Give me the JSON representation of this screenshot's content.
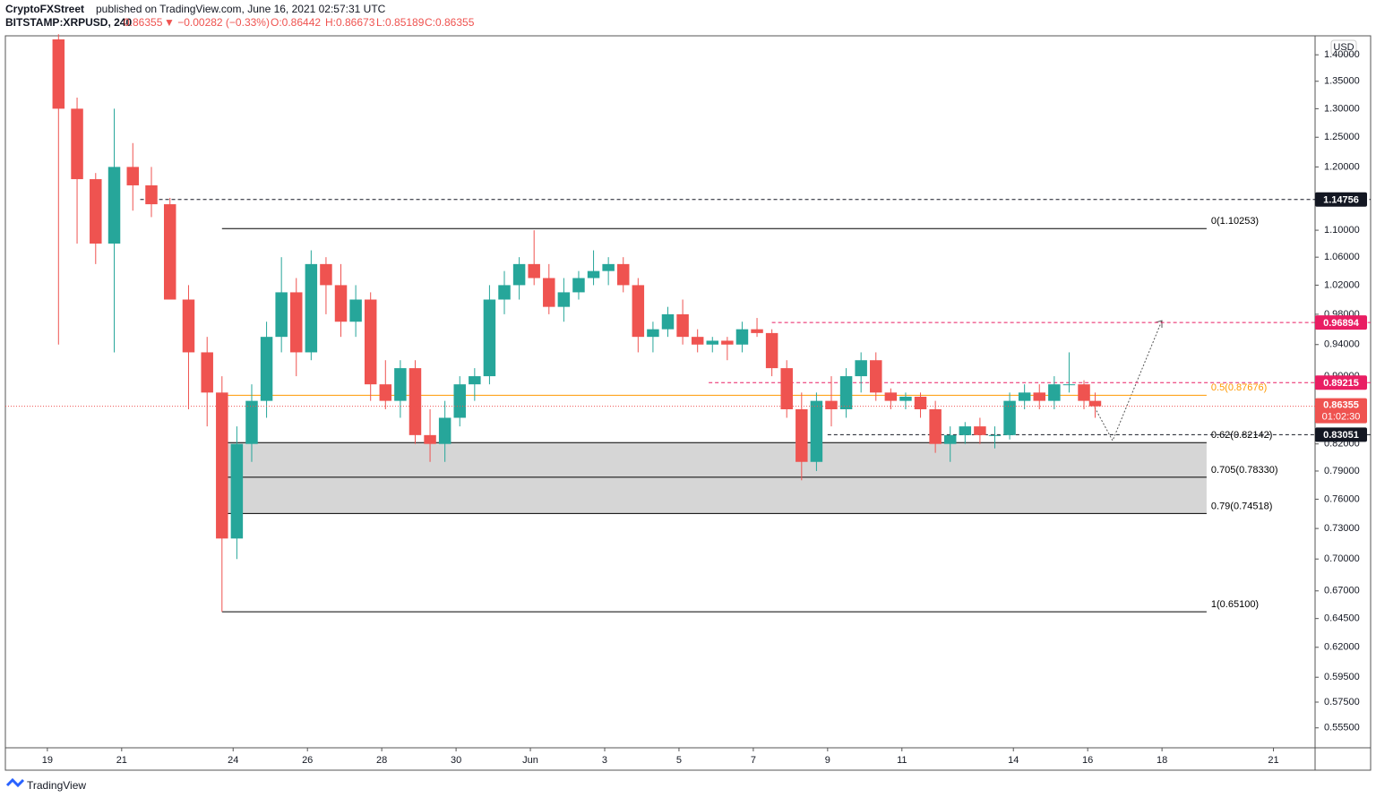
{
  "header": {
    "author": "CryptoFXStreet",
    "published": "published on TradingView.com, June 16, 2021 02:57:31 UTC",
    "symbol": "BITSTAMP:XRPUSD, 240",
    "last": "0.86355",
    "change": "▼ −0.00282 (−0.33%)",
    "open": "O:0.86442",
    "high": "H:0.86673",
    "low": "L:0.85189",
    "close": "C:0.86355"
  },
  "footer": {
    "brand": "TradingView"
  },
  "chart_data": {
    "type": "candlestick",
    "currency": "USD",
    "log": true,
    "up_color": "#26a69a",
    "down_color": "#ef5350",
    "xlim": [
      -1.13,
      34.12
    ],
    "ylim": [
      0.54,
      1.437
    ],
    "xticks": [
      {
        "value": 0,
        "label": "19"
      },
      {
        "value": 2,
        "label": "21"
      },
      {
        "value": 5,
        "label": "24"
      },
      {
        "value": 7,
        "label": "26"
      },
      {
        "value": 9,
        "label": "28"
      },
      {
        "value": 11,
        "label": "30"
      },
      {
        "value": 13,
        "label": "Jun"
      },
      {
        "value": 15,
        "label": "3"
      },
      {
        "value": 17,
        "label": "5"
      },
      {
        "value": 19,
        "label": "7"
      },
      {
        "value": 21,
        "label": "9"
      },
      {
        "value": 23,
        "label": "11"
      },
      {
        "value": 26,
        "label": "14"
      },
      {
        "value": 28,
        "label": "16"
      },
      {
        "value": 30,
        "label": "18"
      },
      {
        "value": 33,
        "label": "21"
      }
    ],
    "yticks": [
      {
        "value": 1.4,
        "label": "1.40000"
      },
      {
        "value": 1.35,
        "label": "1.35000"
      },
      {
        "value": 1.3,
        "label": "1.30000"
      },
      {
        "value": 1.25,
        "label": "1.25000"
      },
      {
        "value": 1.2,
        "label": "1.20000"
      },
      {
        "value": 1.1,
        "label": "1.10000"
      },
      {
        "value": 1.06,
        "label": "1.06000"
      },
      {
        "value": 1.02,
        "label": "1.02000"
      },
      {
        "value": 0.98,
        "label": "0.98000"
      },
      {
        "value": 0.94,
        "label": "0.94000"
      },
      {
        "value": 0.9,
        "label": "0.90000"
      },
      {
        "value": 0.82,
        "label": "0.82000"
      },
      {
        "value": 0.79,
        "label": "0.79000"
      },
      {
        "value": 0.76,
        "label": "0.76000"
      },
      {
        "value": 0.73,
        "label": "0.73000"
      },
      {
        "value": 0.7,
        "label": "0.70000"
      },
      {
        "value": 0.67,
        "label": "0.67000"
      },
      {
        "value": 0.645,
        "label": "0.64500"
      },
      {
        "value": 0.62,
        "label": "0.62000"
      },
      {
        "value": 0.595,
        "label": "0.59500"
      },
      {
        "value": 0.575,
        "label": "0.57500"
      },
      {
        "value": 0.555,
        "label": "0.55500"
      }
    ],
    "x": [
      0.3,
      0.8,
      1.3,
      1.8,
      2.3,
      2.8,
      3.3,
      3.8,
      4.3,
      4.7,
      5.1,
      5.5,
      5.9,
      6.3,
      6.7,
      7.1,
      7.5,
      7.9,
      8.3,
      8.7,
      9.1,
      9.5,
      9.9,
      10.3,
      10.7,
      11.1,
      11.5,
      11.9,
      12.3,
      12.7,
      13.1,
      13.5,
      13.9,
      14.3,
      14.7,
      15.1,
      15.5,
      15.9,
      16.3,
      16.7,
      17.1,
      17.5,
      17.9,
      18.3,
      18.7,
      19.1,
      19.5,
      19.9,
      20.3,
      20.7,
      21.1,
      21.5,
      21.9,
      22.3,
      22.7,
      23.1,
      23.5,
      23.9,
      24.3,
      24.7,
      25.1,
      25.5,
      25.9,
      26.3,
      26.7,
      27.1,
      27.5,
      27.9,
      28.2
    ],
    "ohlc": [
      [
        1.43,
        1.44,
        0.94,
        1.3
      ],
      [
        1.3,
        1.32,
        1.08,
        1.18
      ],
      [
        1.18,
        1.19,
        1.05,
        1.08
      ],
      [
        1.08,
        1.3,
        0.93,
        1.2
      ],
      [
        1.2,
        1.24,
        1.13,
        1.17
      ],
      [
        1.17,
        1.2,
        1.12,
        1.14
      ],
      [
        1.14,
        1.15,
        1.0,
        1.0
      ],
      [
        1.0,
        1.02,
        0.86,
        0.93
      ],
      [
        0.93,
        0.95,
        0.84,
        0.88
      ],
      [
        0.88,
        0.9,
        0.651,
        0.72
      ],
      [
        0.72,
        0.84,
        0.7,
        0.82
      ],
      [
        0.82,
        0.89,
        0.8,
        0.87
      ],
      [
        0.87,
        0.97,
        0.85,
        0.95
      ],
      [
        0.95,
        1.06,
        0.93,
        1.01
      ],
      [
        1.01,
        1.03,
        0.9,
        0.93
      ],
      [
        0.93,
        1.07,
        0.92,
        1.05
      ],
      [
        1.05,
        1.06,
        0.98,
        1.02
      ],
      [
        1.02,
        1.05,
        0.95,
        0.97
      ],
      [
        0.97,
        1.02,
        0.95,
        1.0
      ],
      [
        1.0,
        1.01,
        0.87,
        0.89
      ],
      [
        0.89,
        0.92,
        0.86,
        0.87
      ],
      [
        0.87,
        0.92,
        0.85,
        0.91
      ],
      [
        0.91,
        0.92,
        0.82,
        0.83
      ],
      [
        0.83,
        0.86,
        0.8,
        0.82
      ],
      [
        0.82,
        0.87,
        0.8,
        0.85
      ],
      [
        0.85,
        0.9,
        0.84,
        0.89
      ],
      [
        0.89,
        0.91,
        0.87,
        0.9
      ],
      [
        0.9,
        1.02,
        0.89,
        1.0
      ],
      [
        1.0,
        1.04,
        0.98,
        1.02
      ],
      [
        1.02,
        1.06,
        1.0,
        1.05
      ],
      [
        1.05,
        1.1,
        1.02,
        1.03
      ],
      [
        1.03,
        1.05,
        0.98,
        0.99
      ],
      [
        0.99,
        1.03,
        0.97,
        1.01
      ],
      [
        1.01,
        1.04,
        1.0,
        1.03
      ],
      [
        1.03,
        1.07,
        1.02,
        1.04
      ],
      [
        1.04,
        1.06,
        1.02,
        1.05
      ],
      [
        1.05,
        1.06,
        1.01,
        1.02
      ],
      [
        1.02,
        1.03,
        0.93,
        0.95
      ],
      [
        0.95,
        0.97,
        0.93,
        0.96
      ],
      [
        0.96,
        0.99,
        0.95,
        0.98
      ],
      [
        0.98,
        1.0,
        0.94,
        0.95
      ],
      [
        0.95,
        0.96,
        0.93,
        0.94
      ],
      [
        0.94,
        0.95,
        0.93,
        0.945
      ],
      [
        0.945,
        0.95,
        0.92,
        0.94
      ],
      [
        0.94,
        0.97,
        0.93,
        0.96
      ],
      [
        0.96,
        0.975,
        0.95,
        0.955
      ],
      [
        0.955,
        0.96,
        0.9,
        0.91
      ],
      [
        0.91,
        0.92,
        0.85,
        0.86
      ],
      [
        0.86,
        0.88,
        0.78,
        0.8
      ],
      [
        0.8,
        0.88,
        0.79,
        0.87
      ],
      [
        0.87,
        0.9,
        0.84,
        0.86
      ],
      [
        0.86,
        0.91,
        0.85,
        0.9
      ],
      [
        0.9,
        0.93,
        0.88,
        0.92
      ],
      [
        0.92,
        0.93,
        0.87,
        0.88
      ],
      [
        0.88,
        0.885,
        0.86,
        0.87
      ],
      [
        0.87,
        0.88,
        0.86,
        0.875
      ],
      [
        0.875,
        0.88,
        0.85,
        0.86
      ],
      [
        0.86,
        0.87,
        0.81,
        0.82
      ],
      [
        0.82,
        0.84,
        0.8,
        0.83
      ],
      [
        0.83,
        0.845,
        0.82,
        0.84
      ],
      [
        0.84,
        0.85,
        0.82,
        0.83
      ],
      [
        0.83,
        0.84,
        0.815,
        0.83
      ],
      [
        0.83,
        0.88,
        0.825,
        0.87
      ],
      [
        0.87,
        0.89,
        0.86,
        0.88
      ],
      [
        0.88,
        0.89,
        0.86,
        0.87
      ],
      [
        0.87,
        0.9,
        0.86,
        0.89
      ],
      [
        0.89,
        0.93,
        0.88,
        0.89
      ],
      [
        0.89,
        0.895,
        0.86,
        0.87
      ],
      [
        0.87,
        0.88,
        0.85,
        0.86355
      ]
    ],
    "fib": {
      "start": 4.7,
      "end": 31.2,
      "levels": [
        {
          "label": "0(1.10253)",
          "value": 1.10253,
          "color": "#000000"
        },
        {
          "label": "0.5(0.87676)",
          "value": 0.87676,
          "color": "#ff9800"
        },
        {
          "label": "0.62(0.82142)",
          "value": 0.82142,
          "color": "#000000"
        },
        {
          "label": "0.705(0.78330)",
          "value": 0.7833,
          "color": "#000000"
        },
        {
          "label": "0.79(0.74518)",
          "value": 0.74518,
          "color": "#000000"
        },
        {
          "label": "1(0.65100)",
          "value": 0.651,
          "color": "#000000"
        }
      ]
    },
    "levels": [
      {
        "value": 1.14756,
        "label": "1.14756",
        "start": 2.5,
        "color": "#131722"
      },
      {
        "value": 0.96894,
        "label": "0.96894",
        "start": 19.5,
        "color": "#e91e63"
      },
      {
        "value": 0.89215,
        "label": "0.89215",
        "start": 17.8,
        "color": "#e91e63"
      },
      {
        "value": 0.83051,
        "label": "0.83051",
        "start": 21.0,
        "color": "#131722"
      }
    ],
    "price": {
      "value": 0.86355,
      "label": "0.86355",
      "countdown": "01:02:30",
      "color": "#ef5350"
    }
  }
}
